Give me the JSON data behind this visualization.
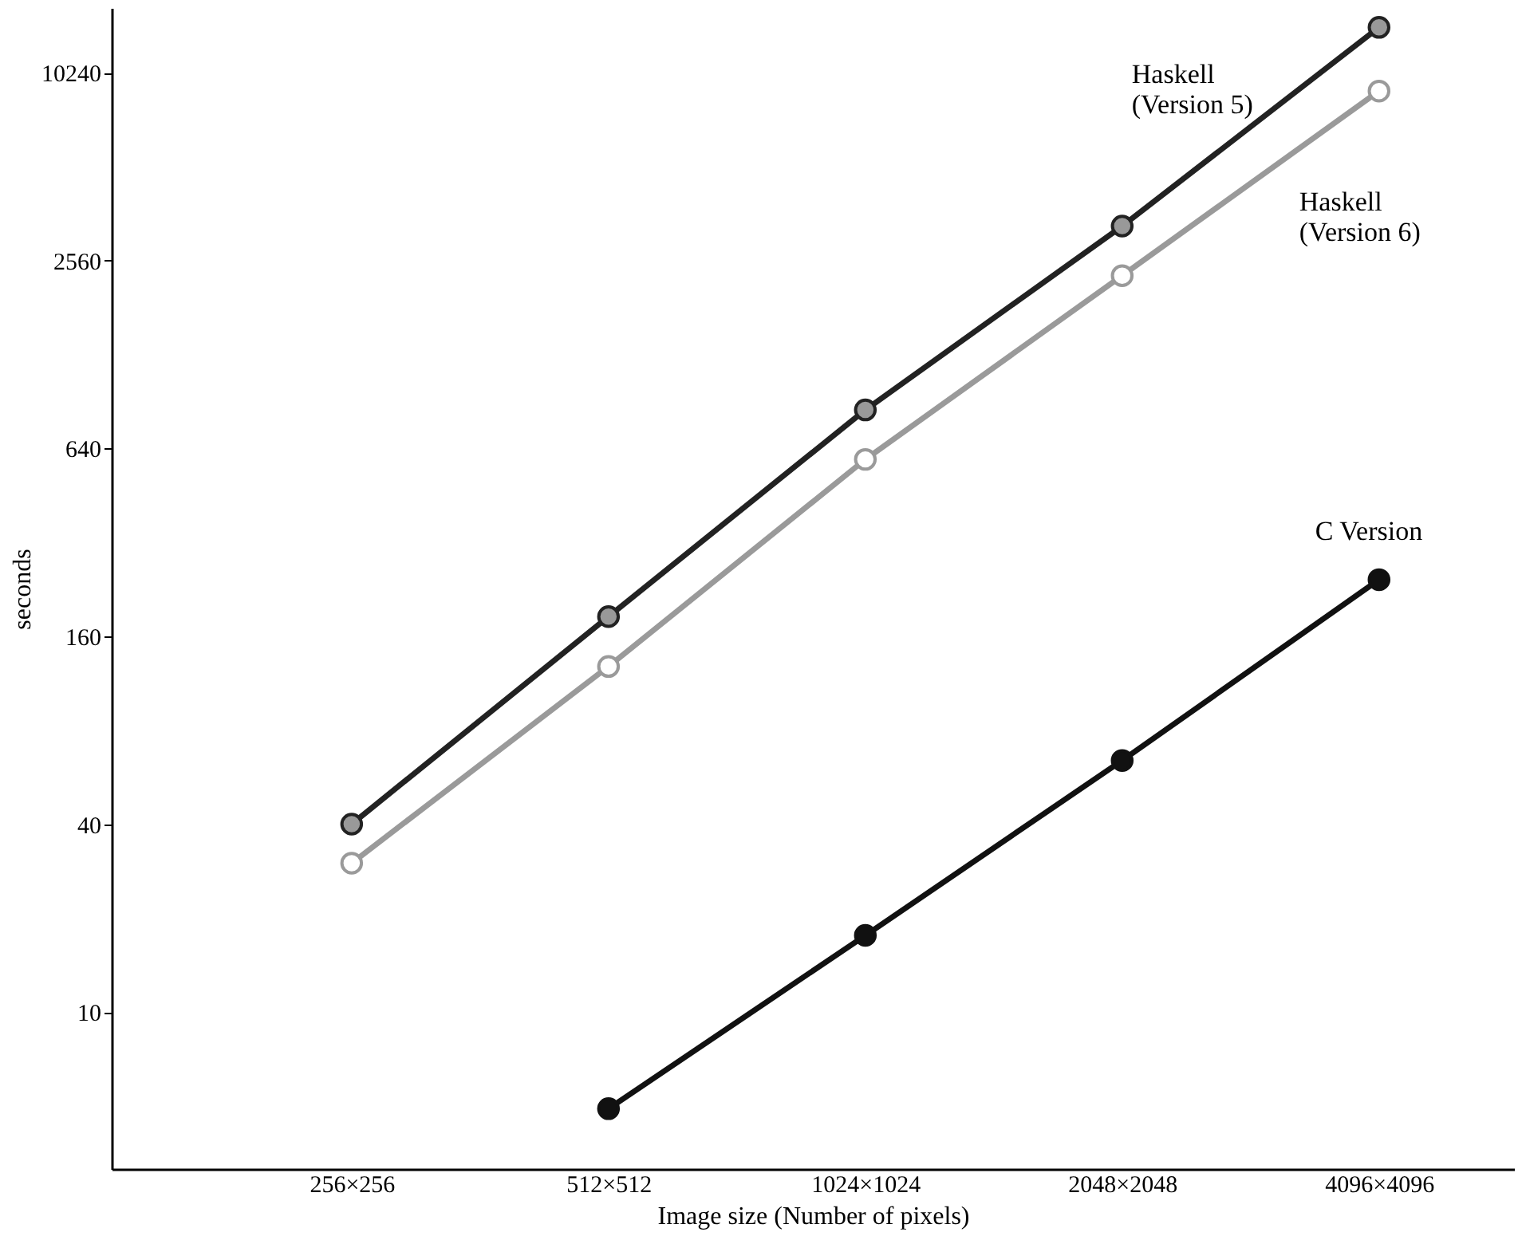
{
  "chart_data": {
    "type": "line",
    "xlabel": "Image size (Number of pixels)",
    "ylabel": "seconds",
    "categories": [
      "256×256",
      "512×512",
      "1024×1024",
      "2048×2048",
      "4096×4096"
    ],
    "series": [
      {
        "name": "Haskell\n(Version 5)",
        "color": "#222222",
        "values": [
          40,
          185,
          850,
          3300,
          14300
        ]
      },
      {
        "name": "Haskell\n(Version 6)",
        "color": "#9a9a9a",
        "values": [
          30,
          128,
          590,
          2290,
          8940
        ]
      },
      {
        "name": "C Version",
        "color": "#111111",
        "values": [
          null,
          4.9,
          17.6,
          64,
          243
        ]
      }
    ],
    "log": true,
    "ylim": [
      3.14,
      16500
    ],
    "yticks": [
      10,
      40,
      160,
      640,
      2560,
      10240
    ],
    "grid": false,
    "marker": "circle",
    "line_style": "solid"
  }
}
